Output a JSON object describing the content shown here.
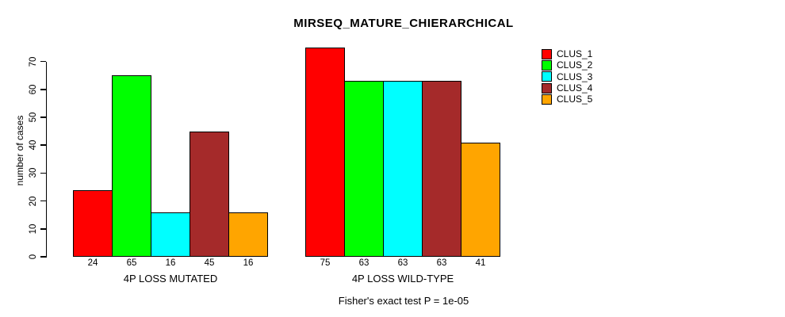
{
  "chart_data": {
    "type": "bar",
    "title": "MIRSEQ_MATURE_CHIERARCHICAL",
    "ylabel": "number of cases",
    "xlabel": "",
    "caption": "Fisher's exact test P = 1e-05",
    "ylim": [
      0,
      70
    ],
    "yticks": [
      0,
      10,
      20,
      30,
      40,
      50,
      60,
      70
    ],
    "grid": false,
    "legend_position": "right",
    "categories": [
      "4P LOSS MUTATED",
      "4P LOSS WILD-TYPE"
    ],
    "series": [
      {
        "name": "CLUS_1",
        "color": "#FF0000",
        "values": [
          24,
          75
        ]
      },
      {
        "name": "CLUS_2",
        "color": "#00FF00",
        "values": [
          65,
          63
        ]
      },
      {
        "name": "CLUS_3",
        "color": "#00FFFF",
        "values": [
          16,
          63
        ]
      },
      {
        "name": "CLUS_4",
        "color": "#A52A2A",
        "values": [
          45,
          63
        ]
      },
      {
        "name": "CLUS_5",
        "color": "#FFA500",
        "values": [
          16,
          41
        ]
      }
    ],
    "bar_value_labels": [
      [
        24,
        65,
        16,
        45,
        16
      ],
      [
        75,
        63,
        63,
        63,
        41
      ]
    ]
  }
}
